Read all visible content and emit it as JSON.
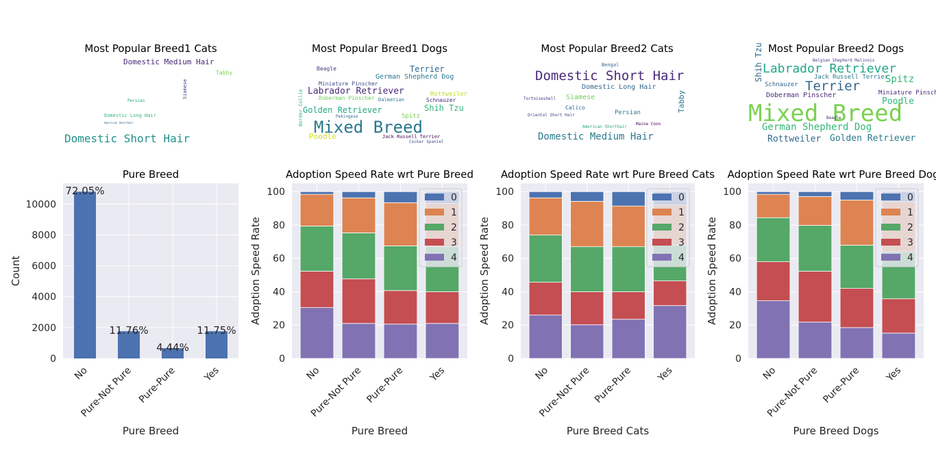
{
  "chart_data": [
    {
      "type": "wordcloud",
      "title": "Most Popular Breed1 Cats",
      "words": [
        "Domestic Short Hair",
        "Domestic Medium Hair",
        "Tabby",
        "Persian",
        "Domestic Long Hair",
        "Siamese",
        "American Shorthair"
      ]
    },
    {
      "type": "wordcloud",
      "title": "Most Popular Breed1 Dogs",
      "words": [
        "Mixed Breed",
        "Labrador Retriever",
        "Golden Retriever",
        "Terrier",
        "Shih Tzu",
        "German Shepherd Dog",
        "Rottweiler",
        "Poodle",
        "Beagle",
        "Schnauzer",
        "Miniature Pinscher",
        "Doberman Pinscher",
        "Jack Russell Terrier",
        "Dalmatian",
        "Spitz",
        "Pekingese",
        "Cocker Spaniel",
        "Border Collie"
      ]
    },
    {
      "type": "wordcloud",
      "title": "Most Popular Breed2 Cats",
      "words": [
        "Domestic Short Hair",
        "Domestic Medium Hair",
        "Domestic Long Hair",
        "Siamese",
        "Persian",
        "Tabby",
        "Calico",
        "Bengal",
        "American Shorthair",
        "Maine Coon",
        "Oriental Short Hair",
        "Tortoiseshell"
      ]
    },
    {
      "type": "wordcloud",
      "title": "Most Popular Breed2 Dogs",
      "words": [
        "Mixed Breed",
        "Labrador Retriever",
        "Terrier",
        "German Shepherd Dog",
        "Rottweiler",
        "Golden Retriever",
        "Spitz",
        "Poodle",
        "Doberman Pinscher",
        "Miniature Pinscher",
        "Schnauzer",
        "Jack Russell Terrier",
        "Shih Tzu",
        "Belgian Shepherd Malinois",
        "Beagle"
      ]
    },
    {
      "type": "bar",
      "title": "Pure Breed",
      "x_label": "Pure Breed",
      "y_label": "Count",
      "categories": [
        "No",
        "Pure-Not Pure",
        "Pure-Pure",
        "Yes"
      ],
      "values": [
        10802,
        1763,
        666,
        1762
      ],
      "color": "#4c72b0",
      "annotations": [
        "72.05%",
        "11.76%",
        "4.44%",
        "11.75%"
      ],
      "ylim": [
        0,
        11342
      ],
      "yticks": [
        0,
        2000,
        4000,
        6000,
        8000,
        10000
      ],
      "grid": true
    },
    {
      "type": "stacked_bar",
      "title": "Adoption Speed Rate wrt Pure Breed",
      "x_label": "Pure Breed",
      "y_label": "Adoption Speed Rate",
      "categories": [
        "No",
        "Pure-Not Pure",
        "Pure-Pure",
        "Yes"
      ],
      "series": [
        {
          "name": "0",
          "color": "#4c72b0",
          "values": [
            1.6,
            3.7,
            6.6,
            7
          ]
        },
        {
          "name": "1",
          "color": "#dd8452",
          "values": [
            19,
            21,
            25.9,
            26
          ]
        },
        {
          "name": "2",
          "color": "#55a868",
          "values": [
            27.1,
            27.6,
            26.8,
            27
          ]
        },
        {
          "name": "3",
          "color": "#c44e52",
          "values": [
            21.8,
            26.7,
            20.1,
            19
          ]
        },
        {
          "name": "4",
          "color": "#8172b3",
          "values": [
            30.5,
            21,
            20.6,
            21
          ]
        }
      ],
      "ylim": [
        0,
        105
      ],
      "yticks": [
        0,
        20,
        40,
        60,
        80,
        100
      ],
      "grid": true,
      "legend": "upper right"
    },
    {
      "type": "stacked_bar",
      "title": "Adoption Speed Rate wrt Pure Breed Cats",
      "x_label": "Pure Breed Cats",
      "y_label": "Adoption Speed Rate",
      "categories": [
        "No",
        "Pure-Not Pure",
        "Pure-Pure",
        "Yes"
      ],
      "series": [
        {
          "name": "0",
          "color": "#4c72b0",
          "values": [
            3.7,
            5.8,
            8.6,
            8
          ]
        },
        {
          "name": "1",
          "color": "#dd8452",
          "values": [
            22.3,
            27.2,
            24.4,
            24
          ]
        },
        {
          "name": "2",
          "color": "#55a868",
          "values": [
            28.3,
            27,
            27,
            21.5
          ]
        },
        {
          "name": "3",
          "color": "#c44e52",
          "values": [
            19.7,
            19.8,
            16.5,
            14.8
          ]
        },
        {
          "name": "4",
          "color": "#8172b3",
          "values": [
            26,
            20.2,
            23.5,
            31.7
          ]
        }
      ],
      "ylim": [
        0,
        105
      ],
      "yticks": [
        0,
        20,
        40,
        60,
        80,
        100
      ],
      "grid": true,
      "legend": "upper right"
    },
    {
      "type": "stacked_bar",
      "title": "Adoption Speed Rate wrt Pure Breed Dogs",
      "x_label": "Pure Breed Dogs",
      "y_label": "Adoption Speed Rate",
      "categories": [
        "No",
        "Pure-Not Pure",
        "Pure-Pure",
        "Yes"
      ],
      "series": [
        {
          "name": "0",
          "color": "#4c72b0",
          "values": [
            1.6,
            2.9,
            5,
            6
          ]
        },
        {
          "name": "1",
          "color": "#dd8452",
          "values": [
            14,
            17.3,
            27.1,
            30
          ]
        },
        {
          "name": "2",
          "color": "#55a868",
          "values": [
            26.4,
            27.5,
            25.9,
            28.2
          ]
        },
        {
          "name": "3",
          "color": "#c44e52",
          "values": [
            23.4,
            30.5,
            23.5,
            20.6
          ]
        },
        {
          "name": "4",
          "color": "#8172b3",
          "values": [
            34.6,
            21.8,
            18.5,
            15.2
          ]
        }
      ],
      "ylim": [
        0,
        105
      ],
      "yticks": [
        0,
        20,
        40,
        60,
        80,
        100
      ],
      "grid": true,
      "legend": "upper right"
    }
  ]
}
